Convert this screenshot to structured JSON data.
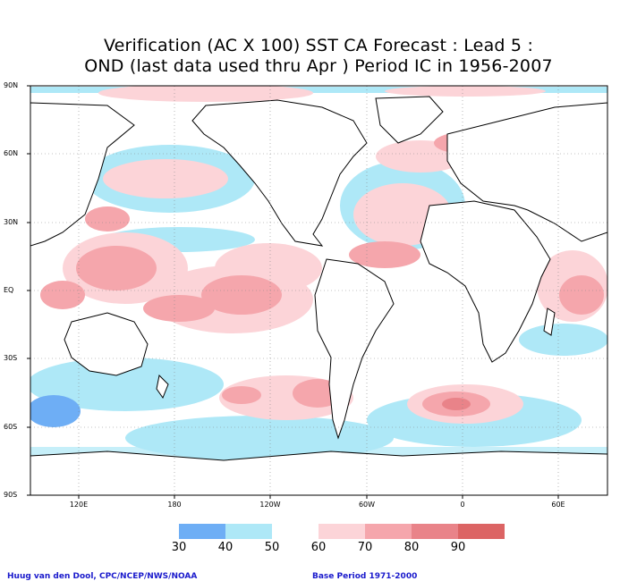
{
  "title_line1": "Verification (AC X 100) SST CA Forecast : Lead 5 :",
  "title_line2": "OND (last data used thru Apr ) Period IC in 1956-2007",
  "lat_labels": [
    "90N",
    "60N",
    "30N",
    "EQ",
    "30S",
    "60S",
    "90S"
  ],
  "lon_labels": [
    "120E",
    "180",
    "120W",
    "60W",
    "0",
    "60E"
  ],
  "legend": {
    "labels": [
      "30",
      "40",
      "50",
      "60",
      "70",
      "80",
      "90"
    ],
    "colors": [
      "#6eaef5",
      "#aee8f7",
      "#ffffff",
      "#fcd4d8",
      "#f5a6ac",
      "#e98389",
      "#dc6464"
    ]
  },
  "footer_left": "Huug van den Dool, CPC/NCEP/NWS/NOAA",
  "footer_right": "Base Period 1971-2000"
}
